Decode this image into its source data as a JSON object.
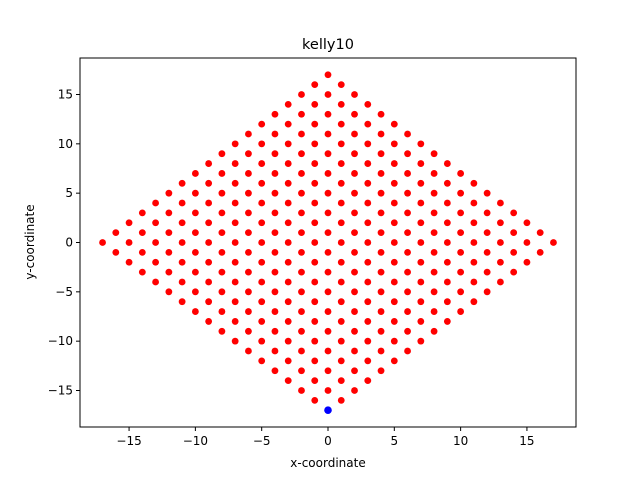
{
  "chart_data": {
    "type": "scatter",
    "title": "kelly10",
    "xlabel": "x-coordinate",
    "ylabel": "y-coordinate",
    "xlim": [
      -18.7,
      18.7
    ],
    "ylim": [
      -18.7,
      18.7
    ],
    "xticks": [
      -15,
      -10,
      -5,
      0,
      5,
      10,
      15
    ],
    "yticks": [
      -15,
      -10,
      -5,
      0,
      5,
      10,
      15
    ],
    "xtick_labels": [
      "−15",
      "−10",
      "−5",
      "0",
      "5",
      "10",
      "15"
    ],
    "ytick_labels": [
      "−15",
      "−10",
      "−5",
      "0",
      "5",
      "10",
      "15"
    ],
    "grid": false,
    "legend": "none",
    "series": [
      {
        "color": "#ff0000",
        "point_rule": "all integer points (x, y) with |x| + |y| <= 17 and |x| + |y| odd, excluding (0, -17)"
      },
      {
        "color": "#0000ff",
        "points": [
          [
            0,
            -17
          ]
        ]
      }
    ]
  }
}
